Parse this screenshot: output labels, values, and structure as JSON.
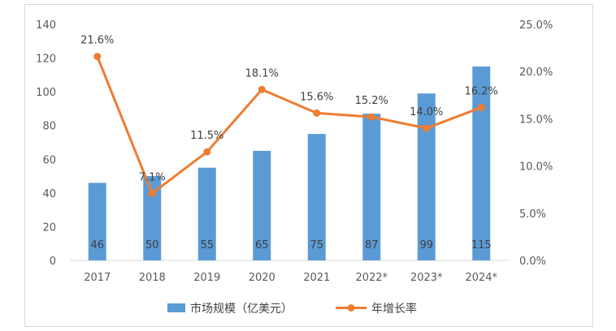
{
  "chart_data": {
    "type": "bar+line",
    "categories": [
      "2017",
      "2018",
      "2019",
      "2020",
      "2021",
      "2022*",
      "2023*",
      "2024*"
    ],
    "series": [
      {
        "name": "市场规模（亿美元）",
        "type": "bar",
        "axis": "left",
        "color": "#5b9bd5",
        "values": [
          46,
          50,
          55,
          65,
          75,
          87,
          99,
          115
        ],
        "labels": [
          "46",
          "50",
          "55",
          "65",
          "75",
          "87",
          "99",
          "115"
        ]
      },
      {
        "name": "年增长率",
        "type": "line",
        "axis": "right",
        "color": "#ed7d31",
        "values": [
          21.6,
          7.1,
          11.5,
          18.1,
          15.6,
          15.2,
          14.0,
          16.2
        ],
        "labels": [
          "21.6%",
          "7.1%",
          "11.5%",
          "18.1%",
          "15.6%",
          "15.2%",
          "14.0%",
          "16.2%"
        ]
      }
    ],
    "y_left": {
      "range": [
        0,
        140
      ],
      "ticks": [
        "0",
        "20",
        "40",
        "60",
        "80",
        "100",
        "120",
        "140"
      ]
    },
    "y_right": {
      "range": [
        0,
        25
      ],
      "ticks": [
        "0.0%",
        "5.0%",
        "10.0%",
        "15.0%",
        "20.0%",
        "25.0%"
      ]
    },
    "grid": false,
    "legend_position": "bottom"
  }
}
